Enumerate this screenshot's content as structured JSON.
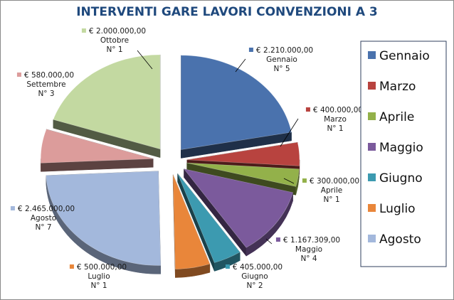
{
  "chart_data": {
    "type": "pie",
    "title": "INTERVENTI GARE LAVORI CONVENZIONI A 3",
    "legend_position": "right",
    "slices": [
      {
        "label": "Gennaio",
        "value": 2210000.0,
        "value_text": "€ 2.210.000,00",
        "count_text": "N° 5",
        "color": "#4a72ad",
        "in_legend": true
      },
      {
        "label": "Marzo",
        "value": 400000.0,
        "value_text": "€ 400.000,00",
        "count_text": "N° 1",
        "color": "#b8433f",
        "in_legend": true
      },
      {
        "label": "Aprile",
        "value": 300000.0,
        "value_text": "€ 300.000,00",
        "count_text": "N° 1",
        "color": "#93b14a",
        "in_legend": true
      },
      {
        "label": "Maggio",
        "value": 1167309.0,
        "value_text": "€ 1.167.309,00",
        "count_text": "N° 4",
        "color": "#7b5a9c",
        "in_legend": true
      },
      {
        "label": "Giugno",
        "value": 405000.0,
        "value_text": "€ 405.000,00",
        "count_text": "N° 2",
        "color": "#3c9ab0",
        "in_legend": true
      },
      {
        "label": "Luglio",
        "value": 500000.0,
        "value_text": "€ 500.000,00",
        "count_text": "N° 1",
        "color": "#e9863a",
        "in_legend": true
      },
      {
        "label": "Agosto",
        "value": 2465000.0,
        "value_text": "€ 2.465.000,00",
        "count_text": "N° 7",
        "color": "#a3b8dc",
        "in_legend": true
      },
      {
        "label": "Settembre",
        "value": 580000.0,
        "value_text": "€ 580.000,00",
        "count_text": "N° 3",
        "color": "#dc9c9b",
        "in_legend": false
      },
      {
        "label": "Ottobre",
        "value": 2000000.0,
        "value_text": "€ 2.000.000,00",
        "count_text": "N° 1",
        "color": "#c3d9a1",
        "in_legend": false
      }
    ]
  }
}
